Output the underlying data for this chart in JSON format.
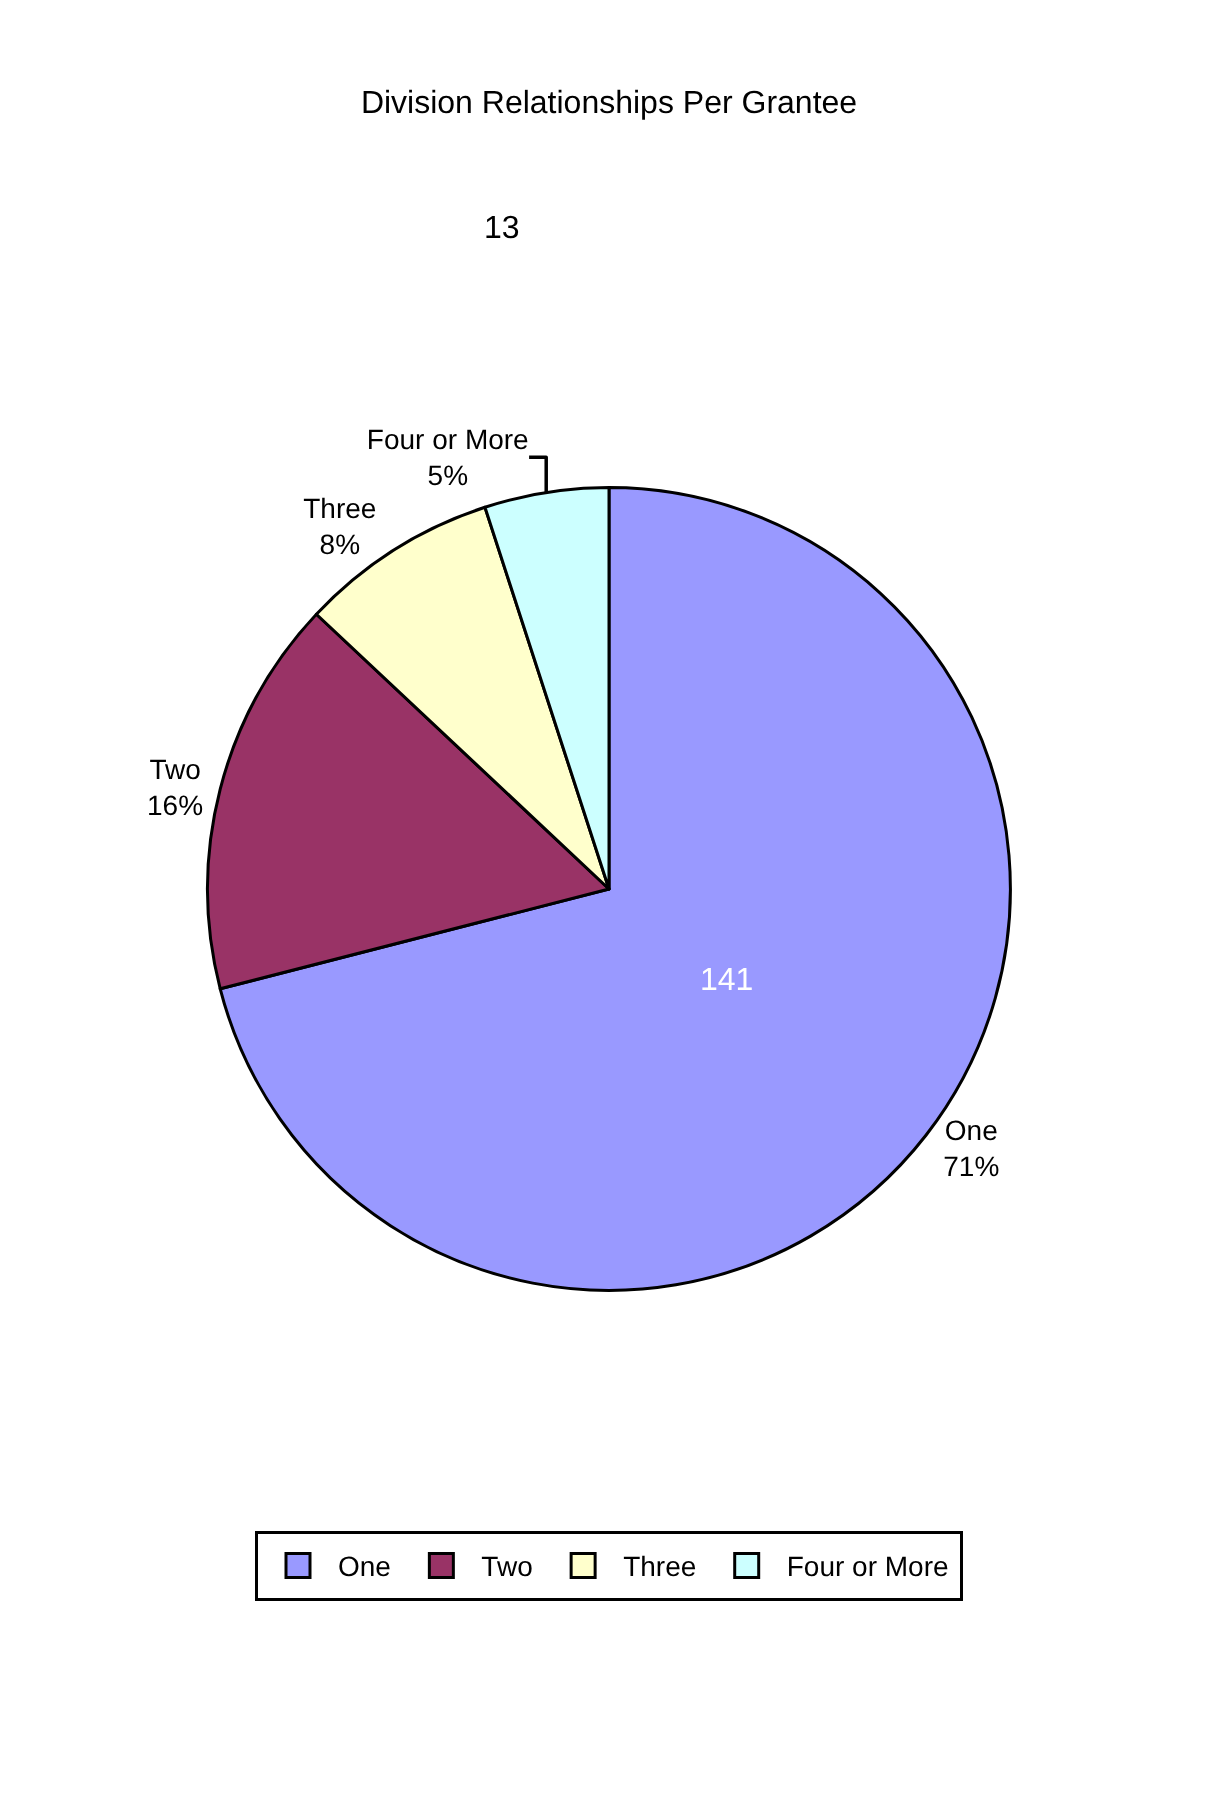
{
  "chart_data": {
    "type": "pie",
    "title": "Division Relationships Per Grantee",
    "categories": [
      "One",
      "Two",
      "Three",
      "Four or More"
    ],
    "values": [
      71,
      16,
      8,
      5
    ],
    "value_labels": [
      "71%",
      "16%",
      "8%",
      "5%"
    ],
    "colors": [
      "#9999ff",
      "#993366",
      "#ffffcc",
      "#ccffff"
    ],
    "annotations": [
      "141",
      "13"
    ],
    "legend": "bottom"
  }
}
